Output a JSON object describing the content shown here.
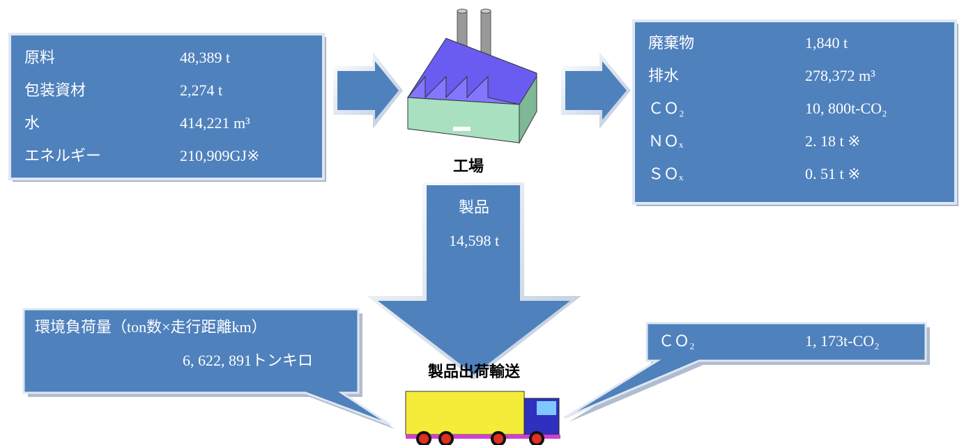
{
  "inputs": {
    "rows": [
      [
        "原料",
        "48,389 t"
      ],
      [
        "包装資材",
        "2,274 t"
      ],
      [
        "水",
        "414,221 m³"
      ],
      [
        "エネルギー",
        "210,909GJ※"
      ]
    ]
  },
  "factory": {
    "label": "工場"
  },
  "outputs": {
    "rows": [
      [
        "廃棄物",
        "1,840 t"
      ],
      [
        "排水",
        "278,372 m³"
      ],
      [
        "ＣＯ₂",
        "10, 800t-CO₂"
      ],
      [
        "ＮＯₓ",
        "2. 18 t ※"
      ],
      [
        "ＳＯₓ",
        "0. 51 t ※"
      ]
    ]
  },
  "product": {
    "label": "製品",
    "value": "14,598 t"
  },
  "transport": {
    "label": "製品出荷輸送",
    "load": {
      "title": "環境負荷量（ton数×走行距離km）",
      "value": "6, 622, 891トンキロ"
    },
    "emission": {
      "label": "ＣＯ₂",
      "value": "1, 173t-CO₂"
    }
  }
}
